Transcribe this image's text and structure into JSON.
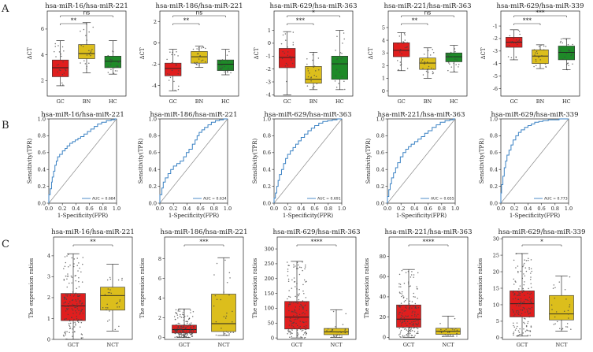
{
  "panel_labels": [
    "A",
    "B",
    "C"
  ],
  "chart_data": [
    {
      "type": "box",
      "row": "A",
      "title": "hsa-miR-16/hsa-miR-221",
      "ylabel": "ΔCT",
      "categories": [
        "GC",
        "BN",
        "HC"
      ],
      "ylim": [
        0.8,
        7.4
      ],
      "yticks": [
        2,
        4,
        6
      ],
      "boxes": [
        {
          "min": 1.6,
          "q1": 2.3,
          "median": 3.0,
          "q3": 3.6,
          "max": 5.1
        },
        {
          "min": 2.6,
          "q1": 3.7,
          "median": 4.1,
          "q3": 4.8,
          "max": 6.5
        },
        {
          "min": 2.5,
          "q1": 3.0,
          "median": 3.5,
          "q3": 3.9,
          "max": 5.1
        }
      ],
      "comparisons": [
        {
          "from": 0,
          "to": 1,
          "label": "**"
        },
        {
          "from": 0,
          "to": 2,
          "label": "ns"
        }
      ]
    },
    {
      "type": "box",
      "row": "A",
      "title": "hsa-miR-186/hsa-miR-221",
      "ylabel": "ΔCT",
      "categories": [
        "GC",
        "BN",
        "HC"
      ],
      "ylim": [
        -5.0,
        3.0
      ],
      "yticks": [
        -4,
        -2,
        0,
        2
      ],
      "boxes": [
        {
          "min": -4.5,
          "q1": -3.1,
          "median": -2.4,
          "q3": -1.9,
          "max": -0.6
        },
        {
          "min": -2.3,
          "q1": -1.9,
          "median": -1.3,
          "q3": -0.8,
          "max": -0.3
        },
        {
          "min": -3.0,
          "q1": -2.6,
          "median": -2.0,
          "q3": -1.6,
          "max": -0.6
        }
      ],
      "comparisons": [
        {
          "from": 0,
          "to": 1,
          "label": "**"
        },
        {
          "from": 0,
          "to": 2,
          "label": "ns"
        }
      ]
    },
    {
      "type": "box",
      "row": "A",
      "title": "hsa-miR-629/hsa-miR-363",
      "ylabel": "ΔCT",
      "categories": [
        "GC",
        "BN",
        "HC"
      ],
      "ylim": [
        -4.1,
        2.5
      ],
      "yticks": [
        -4,
        -3,
        -2,
        -1,
        0,
        1
      ],
      "boxes": [
        {
          "min": -4.0,
          "q1": -1.9,
          "median": -1.1,
          "q3": -0.4,
          "max": 0.9
        },
        {
          "min": -3.6,
          "q1": -3.1,
          "median": -2.8,
          "q3": -1.8,
          "max": -0.7
        },
        {
          "min": -3.6,
          "q1": -2.8,
          "median": -1.6,
          "q3": -1.0,
          "max": 1.0
        }
      ],
      "comparisons": [
        {
          "from": 0,
          "to": 1,
          "label": "***"
        },
        {
          "from": 0,
          "to": 2,
          "label": "*"
        }
      ]
    },
    {
      "type": "box",
      "row": "A",
      "title": "hsa-miR-221/hsa-miR-363",
      "ylabel": "ΔCT",
      "categories": [
        "GC",
        "BN",
        "HC"
      ],
      "ylim": [
        -0.4,
        6.3
      ],
      "yticks": [
        0,
        1,
        2,
        3,
        4,
        5
      ],
      "boxes": [
        {
          "min": 1.6,
          "q1": 2.7,
          "median": 3.2,
          "q3": 3.8,
          "max": 4.6
        },
        {
          "min": 1.0,
          "q1": 1.7,
          "median": 2.2,
          "q3": 2.6,
          "max": 3.4
        },
        {
          "min": 1.5,
          "q1": 2.3,
          "median": 2.7,
          "q3": 3.0,
          "max": 3.6
        }
      ],
      "comparisons": [
        {
          "from": 0,
          "to": 1,
          "label": "**"
        },
        {
          "from": 0,
          "to": 2,
          "label": "ns"
        }
      ]
    },
    {
      "type": "box",
      "row": "A",
      "title": "hsa-miR-629/hsa-miR-339",
      "ylabel": "ΔCT",
      "categories": [
        "GC",
        "BN",
        "HC"
      ],
      "ylim": [
        -6.6,
        0.2
      ],
      "yticks": [
        -6,
        -5,
        -4,
        -3,
        -2,
        -1
      ],
      "boxes": [
        {
          "min": -3.7,
          "q1": -2.7,
          "median": -2.3,
          "q3": -1.9,
          "max": -1.3
        },
        {
          "min": -4.4,
          "q1": -4.0,
          "median": -3.4,
          "q3": -2.9,
          "max": -2.5
        },
        {
          "min": -4.5,
          "q1": -3.7,
          "median": -3.1,
          "q3": -2.6,
          "max": -2.0
        }
      ],
      "comparisons": [
        {
          "from": 0,
          "to": 1,
          "label": "***"
        },
        {
          "from": 0,
          "to": 2,
          "label": "***"
        }
      ]
    },
    {
      "type": "line",
      "row": "B",
      "title": "hsa-miR-16/hsa-miR-221",
      "xlabel": "1-Specificity(FPR)",
      "ylabel": "Sensitivity(TPR)",
      "xlim": [
        0,
        1
      ],
      "ylim": [
        0,
        1
      ],
      "ticks": [
        0,
        0.2,
        0.4,
        0.6,
        0.8,
        1
      ],
      "tick_labels": [
        "0.0",
        "0.2",
        "0.4",
        "0.6",
        "0.8",
        "1.0"
      ],
      "legend": "AUC = 0.684",
      "x": [
        0,
        0.02,
        0.04,
        0.05,
        0.07,
        0.09,
        0.11,
        0.13,
        0.16,
        0.2,
        0.24,
        0.27,
        0.31,
        0.35,
        0.39,
        0.43,
        0.47,
        0.52,
        0.57,
        0.62,
        0.67,
        0.72,
        0.78,
        0.85,
        0.92,
        0.97,
        1.0
      ],
      "y": [
        0,
        0.1,
        0.17,
        0.25,
        0.31,
        0.38,
        0.45,
        0.5,
        0.55,
        0.58,
        0.62,
        0.65,
        0.68,
        0.71,
        0.73,
        0.75,
        0.77,
        0.79,
        0.82,
        0.85,
        0.88,
        0.91,
        0.94,
        0.96,
        0.98,
        0.99,
        1.0
      ]
    },
    {
      "type": "line",
      "row": "B",
      "title": "hsa-miR-186/hsa-miR-221",
      "xlabel": "1-Specificity(FPR)",
      "ylabel": "Sensitivity(TPR)",
      "xlim": [
        0,
        1
      ],
      "ylim": [
        0,
        1
      ],
      "ticks": [
        0,
        0.2,
        0.4,
        0.6,
        0.8,
        1
      ],
      "tick_labels": [
        "0.0",
        "0.2",
        "0.4",
        "0.6",
        "0.8",
        "1.0"
      ],
      "legend": "AUC = 0.634",
      "x": [
        0,
        0.03,
        0.05,
        0.08,
        0.12,
        0.16,
        0.2,
        0.25,
        0.3,
        0.35,
        0.39,
        0.43,
        0.48,
        0.52,
        0.55,
        0.58,
        0.62,
        0.66,
        0.71,
        0.76,
        0.82,
        0.88,
        0.94,
        1.0
      ],
      "y": [
        0,
        0.1,
        0.18,
        0.25,
        0.3,
        0.35,
        0.4,
        0.44,
        0.47,
        0.5,
        0.55,
        0.6,
        0.64,
        0.7,
        0.75,
        0.8,
        0.84,
        0.87,
        0.9,
        0.93,
        0.96,
        0.98,
        0.99,
        1.0
      ]
    },
    {
      "type": "line",
      "row": "B",
      "title": "hsa-miR-629/hsa-miR-363",
      "xlabel": "1-Specificity(FPR)",
      "ylabel": "Sensitivity(TPR)",
      "xlim": [
        0,
        1
      ],
      "ylim": [
        0,
        1
      ],
      "ticks": [
        0,
        0.2,
        0.4,
        0.6,
        0.8,
        1
      ],
      "tick_labels": [
        "0.0",
        "0.2",
        "0.4",
        "0.6",
        "0.8",
        "1.0"
      ],
      "legend": "AUC = 0.691",
      "x": [
        0,
        0.02,
        0.04,
        0.06,
        0.08,
        0.11,
        0.14,
        0.17,
        0.2,
        0.24,
        0.28,
        0.32,
        0.36,
        0.4,
        0.45,
        0.5,
        0.55,
        0.6,
        0.66,
        0.72,
        0.79,
        0.86,
        0.93,
        1.0
      ],
      "y": [
        0,
        0.06,
        0.12,
        0.2,
        0.27,
        0.34,
        0.4,
        0.47,
        0.53,
        0.58,
        0.62,
        0.66,
        0.7,
        0.74,
        0.78,
        0.82,
        0.86,
        0.89,
        0.92,
        0.95,
        0.97,
        0.98,
        0.99,
        1.0
      ]
    },
    {
      "type": "line",
      "row": "B",
      "title": "hsa-miR-221/hsa-miR-363",
      "xlabel": "1-Specificity(FPR)",
      "ylabel": "Sensitivity(TPR)",
      "xlim": [
        0,
        1
      ],
      "ylim": [
        0,
        1
      ],
      "ticks": [
        0,
        0.2,
        0.4,
        0.6,
        0.8,
        1
      ],
      "tick_labels": [
        "0.0",
        "0.2",
        "0.4",
        "0.6",
        "0.8",
        "1.0"
      ],
      "legend": "AUC = 0.655",
      "x": [
        0,
        0.02,
        0.04,
        0.06,
        0.09,
        0.12,
        0.15,
        0.19,
        0.23,
        0.27,
        0.31,
        0.35,
        0.4,
        0.45,
        0.5,
        0.55,
        0.6,
        0.66,
        0.72,
        0.78,
        0.85,
        0.92,
        0.97,
        1.0
      ],
      "y": [
        0,
        0.08,
        0.16,
        0.23,
        0.3,
        0.36,
        0.42,
        0.48,
        0.55,
        0.6,
        0.64,
        0.67,
        0.7,
        0.73,
        0.76,
        0.79,
        0.83,
        0.86,
        0.9,
        0.93,
        0.96,
        0.98,
        0.99,
        1.0
      ]
    },
    {
      "type": "line",
      "row": "B",
      "title": "hsa-miR-629/hsa-miR-339",
      "xlabel": "1-Specificity(FPR)",
      "ylabel": "Sensitivity(TPR)",
      "xlim": [
        0,
        1
      ],
      "ylim": [
        0,
        1
      ],
      "ticks": [
        0,
        0.2,
        0.4,
        0.6,
        0.8,
        1
      ],
      "tick_labels": [
        "0.0",
        "0.2",
        "0.4",
        "0.6",
        "0.8",
        "1.0"
      ],
      "legend": "AUC = 0.773",
      "x": [
        0,
        0.01,
        0.03,
        0.05,
        0.07,
        0.09,
        0.12,
        0.15,
        0.18,
        0.22,
        0.26,
        0.3,
        0.35,
        0.4,
        0.45,
        0.5,
        0.56,
        0.62,
        0.7,
        0.78,
        0.86,
        0.94,
        1.0
      ],
      "y": [
        0,
        0.12,
        0.22,
        0.32,
        0.42,
        0.5,
        0.57,
        0.63,
        0.69,
        0.75,
        0.8,
        0.84,
        0.87,
        0.9,
        0.92,
        0.94,
        0.96,
        0.97,
        0.98,
        0.99,
        0.99,
        1.0,
        1.0
      ]
    },
    {
      "type": "box",
      "row": "C",
      "title": "hsa-miR-16/hsa-miR-221",
      "ylabel": "The expression ratios",
      "categories": [
        "GCT",
        "NCT"
      ],
      "ylim": [
        0,
        4.9
      ],
      "yticks": [
        0,
        1,
        2,
        3,
        4
      ],
      "boxes": [
        {
          "min": 0.0,
          "q1": 0.9,
          "median": 1.6,
          "q3": 2.2,
          "max": 4.1
        },
        {
          "min": 0.4,
          "q1": 1.4,
          "median": 2.1,
          "q3": 2.5,
          "max": 3.6
        }
      ],
      "comparisons": [
        {
          "from": 0,
          "to": 1,
          "label": "**"
        }
      ]
    },
    {
      "type": "box",
      "row": "C",
      "title": "hsa-miR-186/hsa-miR-221",
      "ylabel": "The expression ratios",
      "categories": [
        "GCT",
        "NCT"
      ],
      "ylim": [
        -0.2,
        10.2
      ],
      "yticks": [
        0,
        2,
        4,
        6,
        8
      ],
      "boxes": [
        {
          "min": 0.0,
          "q1": 0.45,
          "median": 0.8,
          "q3": 1.25,
          "max": 2.9
        },
        {
          "min": 0.2,
          "q1": 0.6,
          "median": 1.4,
          "q3": 4.4,
          "max": 8.1
        }
      ],
      "comparisons": [
        {
          "from": 0,
          "to": 1,
          "label": "***"
        }
      ]
    },
    {
      "type": "box",
      "row": "C",
      "title": "hsa-miR-629/hsa-miR-363",
      "ylabel": "The expression ratios",
      "categories": [
        "GCT",
        "NCT"
      ],
      "ylim": [
        -5,
        340
      ],
      "yticks": [
        0,
        50,
        100,
        150,
        200,
        250,
        300
      ],
      "boxes": [
        {
          "min": 0,
          "q1": 30,
          "median": 70,
          "q3": 123,
          "max": 258
        },
        {
          "min": 2,
          "q1": 11,
          "median": 20,
          "q3": 32,
          "max": 95
        }
      ],
      "comparisons": [
        {
          "from": 0,
          "to": 1,
          "label": "****"
        }
      ]
    },
    {
      "type": "box",
      "row": "C",
      "title": "hsa-miR-221/hsa-miR-363",
      "ylabel": "The expression ratios",
      "categories": [
        "GCT",
        "NCT"
      ],
      "ylim": [
        -2,
        99
      ],
      "yticks": [
        0,
        20,
        40,
        60,
        80
      ],
      "boxes": [
        {
          "min": 0,
          "q1": 10,
          "median": 18,
          "q3": 32,
          "max": 67
        },
        {
          "min": 1,
          "q1": 3,
          "median": 6,
          "q3": 9,
          "max": 21
        }
      ],
      "comparisons": [
        {
          "from": 0,
          "to": 1,
          "label": "****"
        }
      ]
    },
    {
      "type": "box",
      "row": "C",
      "title": "hsa-miR-629/hsa-miR-339",
      "ylabel": "The expression ratios",
      "categories": [
        "GCT",
        "NCT"
      ],
      "ylim": [
        -0.5,
        30.5
      ],
      "yticks": [
        0,
        5,
        10,
        15,
        20,
        25,
        30
      ],
      "boxes": [
        {
          "min": 0.5,
          "q1": 6.3,
          "median": 10.3,
          "q3": 14.2,
          "max": 25.5
        },
        {
          "min": 2.0,
          "q1": 5.4,
          "median": 7.2,
          "q3": 12.8,
          "max": 18.7
        }
      ],
      "comparisons": [
        {
          "from": 0,
          "to": 1,
          "label": "*"
        }
      ]
    }
  ],
  "colors": {
    "red": "#e01e1e",
    "yellow": "#dcbe1c",
    "green": "#1e8a28",
    "roc_line": "#3b82c4",
    "diag": "#8a8a8a",
    "text": "#222222"
  }
}
